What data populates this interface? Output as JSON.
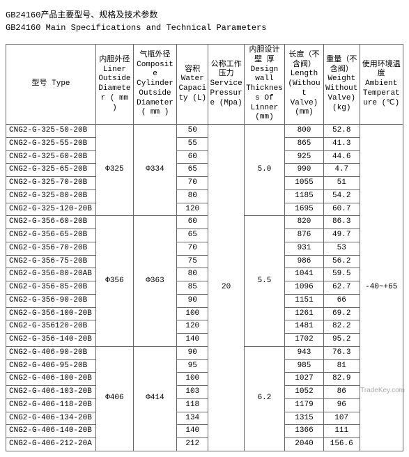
{
  "page": {
    "title_cn": "GB24160产品主要型号、规格及技术参数",
    "title_en": "GB24160 Main Specifications and Technical Parameters",
    "watermark": "TradeKey.com"
  },
  "headers": {
    "type": "型号\nType",
    "liner": "内胆外径\nLiner\nOutside\nDiameter\n( mm )",
    "composite": "气瓶外径\nComposite\nCylinder\nOutside\nDiameter\n( mm )",
    "capacity": "容积\nWater\nCapacity\n(L)",
    "pressure": "公称工作压力\nService\nPressure\n(Mpa)",
    "thickness": "内胆设计壁 厚\nDesign\nwall\nThickness\nOf Linner\n(mm)",
    "length": "长度（不含阀）\nLength\n(Without\nValve)\n(mm)",
    "weight": "重量（不含阀）\nWeight\nWithout\nValve)\n(kg)",
    "ambient": "使用环境温度\nAmbient\nTemperature\n(℃)"
  },
  "shared": {
    "pressure": "20",
    "ambient": "-40~+65"
  },
  "groups": [
    {
      "liner": "Φ325",
      "composite": "Φ334",
      "thickness": "5.0",
      "rows": [
        {
          "type": "CNG2-G-325-50-20B",
          "cap": "50",
          "len": "800",
          "wt": "52.8"
        },
        {
          "type": "CNG2-G-325-55-20B",
          "cap": "55",
          "len": "865",
          "wt": "41.3"
        },
        {
          "type": "CNG2-G-325-60-20B",
          "cap": "60",
          "len": "925",
          "wt": "44.6"
        },
        {
          "type": "CNG2-G-325-65-20B",
          "cap": "65",
          "len": "990",
          "wt": "4.7"
        },
        {
          "type": "CNG2-G-325-70-20B",
          "cap": "70",
          "len": "1055",
          "wt": "51"
        },
        {
          "type": "CNG2-G-325-80-20B",
          "cap": "80",
          "len": "1185",
          "wt": "54.2"
        },
        {
          "type": "CNG2-G-325-120-20B",
          "cap": "120",
          "len": "1695",
          "wt": "60.7"
        }
      ]
    },
    {
      "liner": "Φ356",
      "composite": "Φ363",
      "thickness": "5.5",
      "rows": [
        {
          "type": "CNG2-G-356-60-20B",
          "cap": "60",
          "len": "820",
          "wt": "86.3"
        },
        {
          "type": "CNG2-G-356-65-20B",
          "cap": "65",
          "len": "876",
          "wt": "49.7"
        },
        {
          "type": "CNG2-G-356-70-20B",
          "cap": "70",
          "len": "931",
          "wt": "53"
        },
        {
          "type": "CNG2-G-356-75-20B",
          "cap": "75",
          "len": "986",
          "wt": "56.2"
        },
        {
          "type": "CNG2-G-356-80-20AB",
          "cap": "80",
          "len": "1041",
          "wt": "59.5"
        },
        {
          "type": "CNG2-G-356-85-20B",
          "cap": "85",
          "len": "1096",
          "wt": "62.7"
        },
        {
          "type": "CNG2-G-356-90-20B",
          "cap": "90",
          "len": "1151",
          "wt": "66"
        },
        {
          "type": "CNG2-G-356-100-20B",
          "cap": "100",
          "len": "1261",
          "wt": "69.2"
        },
        {
          "type": "CNG2-G-356120-20B",
          "cap": "120",
          "len": "1481",
          "wt": "82.2"
        },
        {
          "type": "CNG2-G-356-140-20B",
          "cap": "140",
          "len": "1702",
          "wt": "95.2"
        }
      ]
    },
    {
      "liner": "Φ406",
      "composite": "Φ414",
      "thickness": "6.2",
      "rows": [
        {
          "type": "CNG2-G-406-90-20B",
          "cap": "90",
          "len": "943",
          "wt": "76.3"
        },
        {
          "type": "CNG2-G-406-95-20B",
          "cap": "95",
          "len": "985",
          "wt": "81"
        },
        {
          "type": "CNG2-G-406-100-20B",
          "cap": "100",
          "len": "1027",
          "wt": "82.9"
        },
        {
          "type": "CNG2-G-406-103-20B",
          "cap": "103",
          "len": "1052",
          "wt": "86"
        },
        {
          "type": "CNG2-G-406-118-20B",
          "cap": "118",
          "len": "1179",
          "wt": "96"
        },
        {
          "type": "CNG2-G-406-134-20B",
          "cap": "134",
          "len": "1315",
          "wt": "107"
        },
        {
          "type": "CNG2-G-406-140-20B",
          "cap": "140",
          "len": "1366",
          "wt": "111"
        },
        {
          "type": "CNG2-G-406-212-20A",
          "cap": "212",
          "len": "2040",
          "wt": "156.6"
        }
      ]
    }
  ],
  "colwidths": [
    "120",
    "50",
    "58",
    "42",
    "48",
    "54",
    "52",
    "48",
    "58"
  ]
}
